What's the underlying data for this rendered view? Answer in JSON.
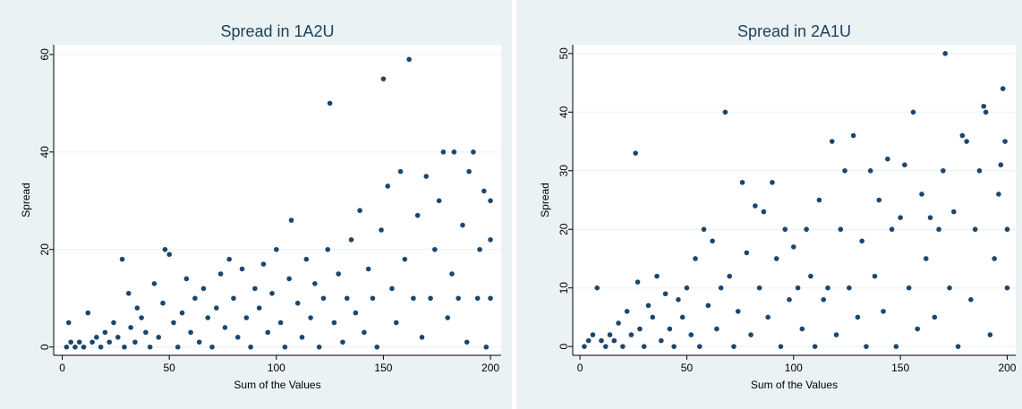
{
  "chart_data": [
    {
      "type": "scatter",
      "title": "Spread in 1A2U",
      "x_label": "Sum of the Values",
      "y_label": "Spread",
      "color": "#1a476f",
      "grid": true,
      "xlim": [
        -4,
        205
      ],
      "ylim": [
        -1.7,
        62
      ],
      "xticks": [
        0,
        50,
        100,
        150,
        200
      ],
      "yticks": [
        0,
        20,
        40,
        60
      ],
      "x": [
        2,
        3,
        4,
        6,
        8,
        10,
        12,
        14,
        16,
        18,
        20,
        22,
        24,
        26,
        28,
        29,
        31,
        32,
        34,
        35,
        37,
        39,
        41,
        43,
        45,
        47,
        48,
        50,
        52,
        54,
        56,
        58,
        60,
        62,
        64,
        66,
        68,
        70,
        72,
        74,
        76,
        78,
        80,
        82,
        84,
        86,
        88,
        90,
        92,
        94,
        96,
        98,
        100,
        102,
        104,
        106,
        107,
        110,
        112,
        114,
        116,
        118,
        120,
        122,
        124,
        125,
        127,
        129,
        131,
        133,
        135,
        137,
        139,
        141,
        143,
        145,
        147,
        149,
        150,
        152,
        154,
        156,
        158,
        160,
        162,
        164,
        166,
        168,
        170,
        172,
        174,
        176,
        178,
        180,
        182,
        183,
        185,
        187,
        189,
        190,
        192,
        194,
        195,
        197,
        198,
        200,
        200,
        200
      ],
      "y": [
        0,
        5,
        1,
        0,
        1,
        0,
        7,
        1,
        2,
        0,
        3,
        1,
        5,
        2,
        18,
        0,
        11,
        4,
        1,
        8,
        6,
        3,
        0,
        13,
        2,
        9,
        20,
        19,
        5,
        0,
        7,
        14,
        3,
        10,
        1,
        12,
        6,
        0,
        8,
        15,
        4,
        18,
        10,
        2,
        16,
        6,
        0,
        12,
        8,
        17,
        3,
        11,
        20,
        5,
        0,
        14,
        26,
        9,
        2,
        18,
        6,
        13,
        0,
        10,
        20,
        50,
        5,
        15,
        1,
        10,
        22,
        7,
        28,
        3,
        16,
        10,
        0,
        24,
        55,
        33,
        12,
        5,
        36,
        18,
        59,
        10,
        27,
        2,
        35,
        10,
        20,
        30,
        40,
        6,
        15,
        40,
        10,
        25,
        1,
        36,
        40,
        10,
        20,
        32,
        0,
        22,
        30,
        10
      ]
    },
    {
      "type": "scatter",
      "title": "Spread in 2A1U",
      "x_label": "Sum of the Values",
      "y_label": "Spread",
      "color": "#1a476f",
      "grid": true,
      "xlim": [
        -3.4,
        204
      ],
      "ylim": [
        -1.5,
        51.5
      ],
      "xticks": [
        0,
        50,
        100,
        150,
        200
      ],
      "yticks": [
        0,
        10,
        20,
        30,
        40,
        50
      ],
      "x": [
        2,
        4,
        6,
        8,
        10,
        12,
        14,
        16,
        18,
        20,
        22,
        24,
        26,
        27,
        28,
        30,
        32,
        34,
        36,
        38,
        40,
        42,
        44,
        46,
        48,
        50,
        52,
        54,
        56,
        58,
        60,
        62,
        64,
        66,
        68,
        70,
        72,
        74,
        76,
        78,
        80,
        82,
        84,
        86,
        88,
        90,
        92,
        94,
        96,
        98,
        100,
        102,
        104,
        106,
        108,
        110,
        112,
        114,
        116,
        118,
        120,
        122,
        124,
        126,
        128,
        130,
        132,
        134,
        136,
        138,
        140,
        142,
        144,
        146,
        148,
        150,
        152,
        154,
        156,
        158,
        160,
        162,
        164,
        166,
        168,
        170,
        171,
        173,
        175,
        177,
        179,
        181,
        183,
        185,
        187,
        189,
        190,
        192,
        194,
        196,
        197,
        198,
        199,
        200,
        200
      ],
      "y": [
        0,
        1,
        2,
        10,
        1,
        0,
        2,
        1,
        4,
        0,
        6,
        2,
        33,
        11,
        3,
        0,
        7,
        5,
        12,
        1,
        9,
        3,
        0,
        8,
        5,
        10,
        2,
        15,
        0,
        20,
        7,
        18,
        3,
        10,
        40,
        12,
        0,
        6,
        28,
        16,
        2,
        24,
        10,
        23,
        5,
        28,
        15,
        0,
        20,
        8,
        17,
        10,
        3,
        20,
        12,
        0,
        25,
        8,
        10,
        35,
        2,
        20,
        30,
        10,
        36,
        5,
        18,
        0,
        30,
        12,
        25,
        6,
        32,
        20,
        0,
        22,
        31,
        10,
        40,
        3,
        26,
        15,
        22,
        5,
        20,
        30,
        50,
        10,
        23,
        0,
        36,
        35,
        8,
        20,
        30,
        41,
        40,
        2,
        15,
        26,
        31,
        44,
        35,
        20,
        10
      ]
    }
  ]
}
